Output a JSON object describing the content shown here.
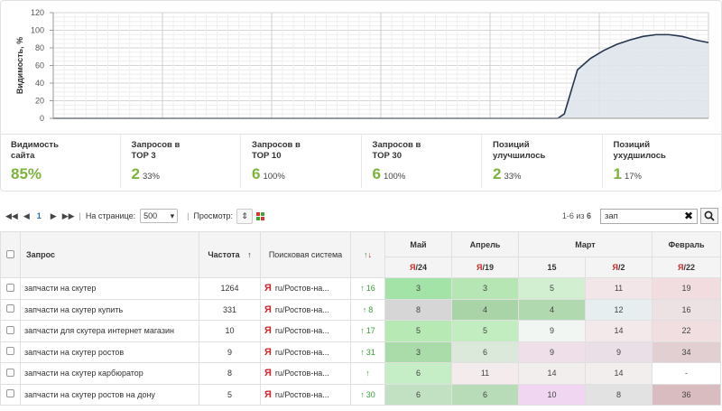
{
  "chart_data": {
    "type": "area",
    "ylabel": "Видимость, %",
    "y_ticks": [
      "0",
      "20",
      "40",
      "60",
      "80",
      "100",
      "120"
    ],
    "ylim": [
      0,
      120
    ],
    "grid": true,
    "x_range": [
      0,
      100
    ],
    "points": [
      [
        0,
        0
      ],
      [
        77,
        0
      ],
      [
        78,
        5
      ],
      [
        79,
        30
      ],
      [
        80,
        55
      ],
      [
        82,
        68
      ],
      [
        84,
        77
      ],
      [
        86,
        84
      ],
      [
        88,
        89
      ],
      [
        90,
        93
      ],
      [
        92,
        95
      ],
      [
        94,
        95
      ],
      [
        96,
        93
      ],
      [
        98,
        89
      ],
      [
        100,
        86
      ]
    ],
    "fill_color": "#dde4ea",
    "line_color": "#24364f"
  },
  "stats": [
    {
      "label": "Видимость\nсайта",
      "value": "85%",
      "pct": ""
    },
    {
      "label": "Запросов в\nТОР 3",
      "value": "2",
      "pct": "33%"
    },
    {
      "label": "Запросов в\nТОР 10",
      "value": "6",
      "pct": "100%"
    },
    {
      "label": "Запросов в\nТОР 30",
      "value": "6",
      "pct": "100%"
    },
    {
      "label": "Позиций\nулучшилось",
      "value": "2",
      "pct": "33%"
    },
    {
      "label": "Позиций\nухудшилось",
      "value": "1",
      "pct": "17%"
    }
  ],
  "toolbar": {
    "first": "◀◀",
    "prev": "◀",
    "page": "1",
    "next": "▶",
    "last": "▶▶",
    "per_page_label": "На странице:",
    "per_page_value": "500",
    "view_label": "Просмотр:",
    "count_text_prefix": "1-6 из ",
    "count_total": "6",
    "search_value": "зап",
    "clear": "✖"
  },
  "table": {
    "headers": {
      "query": "Запрос",
      "freq": "Частота",
      "freq_sort": "↑",
      "engine": "Поисковая система",
      "arrows_up": "↑",
      "arrows_down": "↓"
    },
    "months": [
      {
        "name": "Май",
        "span": 1
      },
      {
        "name": "Апрель",
        "span": 1
      },
      {
        "name": "Март",
        "span": 2
      },
      {
        "name": "Февраль",
        "span": 1
      }
    ],
    "dates": [
      {
        "ya": "Я",
        "text": "/24"
      },
      {
        "ya": "Я",
        "text": "/19"
      },
      {
        "ya": "",
        "text": "15"
      },
      {
        "ya": "Я",
        "text": "/2"
      },
      {
        "ya": "Я",
        "text": "/22"
      }
    ],
    "rows": [
      {
        "query": "запчасти на скутер",
        "freq": "1264",
        "engine_ya": "Я",
        "engine": "ru/Ростов-на...",
        "arrow": "↑",
        "change": "16",
        "pos": [
          "3",
          "3",
          "5",
          "11",
          "19"
        ],
        "colors": [
          "#a3e3a8",
          "#b5e6b3",
          "#d3efd2",
          "#f3e6e8",
          "#f1dcdf"
        ]
      },
      {
        "query": "запчасти на скутер купить",
        "freq": "331",
        "engine_ya": "Я",
        "engine": "ru/Ростов-на...",
        "arrow": "↑",
        "change": "8",
        "pos": [
          "8",
          "4",
          "4",
          "12",
          "16"
        ],
        "colors": [
          "#d6d6d6",
          "#a9d4a8",
          "#b0d9af",
          "#e6eef0",
          "#ece1e3"
        ]
      },
      {
        "query": "запчасти для скутера интернет магазин",
        "freq": "10",
        "engine_ya": "Я",
        "engine": "ru/Ростов-на...",
        "arrow": "↑",
        "change": "17",
        "pos": [
          "5",
          "5",
          "9",
          "14",
          "22"
        ],
        "colors": [
          "#b6e9b3",
          "#c2edc0",
          "#f2f6f2",
          "#f3e8ea",
          "#f0dee0"
        ]
      },
      {
        "query": "запчасти на скутер ростов",
        "freq": "9",
        "engine_ya": "Я",
        "engine": "ru/Ростов-на...",
        "arrow": "↑",
        "change": "31",
        "pos": [
          "3",
          "6",
          "9",
          "9",
          "34"
        ],
        "colors": [
          "#a9dca8",
          "#dbe9db",
          "#eedfe8",
          "#eadfe6",
          "#e1cfd2"
        ]
      },
      {
        "query": "запчасти на скутер карбюратор",
        "freq": "8",
        "engine_ya": "Я",
        "engine": "ru/Ростов-на...",
        "arrow": "↑",
        "change": "",
        "pos": [
          "6",
          "11",
          "14",
          "14",
          "-"
        ],
        "colors": [
          "#c6eec6",
          "#f4ecec",
          "#f3eeee",
          "#f3eeee",
          "#ffffff"
        ]
      },
      {
        "query": "запчасти на скутер ростов на дону",
        "freq": "5",
        "engine_ya": "Я",
        "engine": "ru/Ростов-на...",
        "arrow": "↑",
        "change": "30",
        "pos": [
          "6",
          "6",
          "10",
          "8",
          "36"
        ],
        "colors": [
          "#c2e0c2",
          "#b8dcb8",
          "#f0d6f0",
          "#e2e2e2",
          "#d9bcbf"
        ]
      }
    ]
  }
}
